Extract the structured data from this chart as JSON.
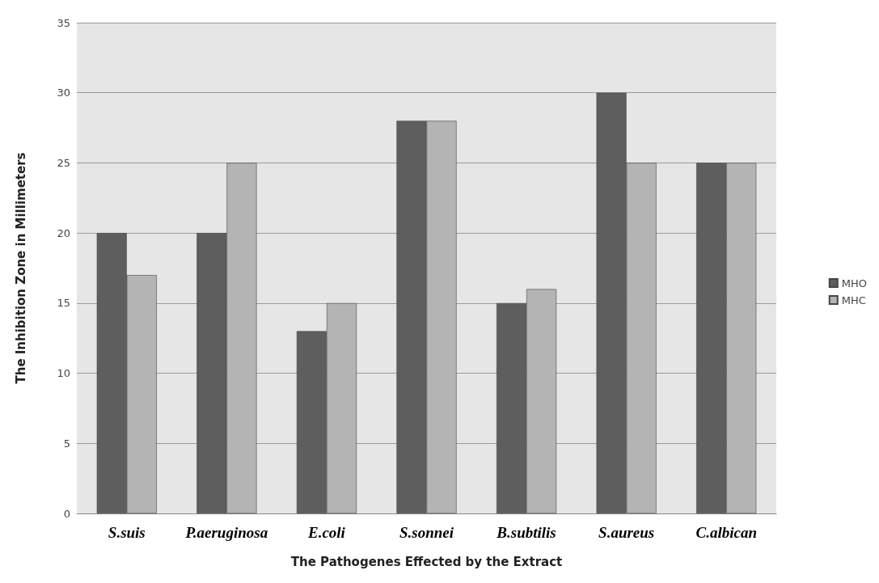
{
  "chart_data": {
    "type": "bar",
    "xlabel": "The Pathogenes Effected by the Extract",
    "ylabel": "The Inhibition Zone in Millimeters",
    "categories": [
      "S.suis",
      "P.aeruginosa",
      "E.coli",
      "S.sonnei",
      "B.subtilis",
      "S.aureus",
      "C.albican"
    ],
    "series": [
      {
        "name": "MHO",
        "color": "#5e5e5e",
        "values": [
          20,
          20,
          13,
          28,
          15,
          30,
          25
        ]
      },
      {
        "name": "MHC",
        "color": "#b4b4b4",
        "values": [
          17,
          25,
          15,
          28,
          16,
          25,
          25
        ]
      }
    ],
    "ylim": [
      0,
      35
    ],
    "yticks": [
      0,
      5,
      10,
      15,
      20,
      25,
      30,
      35
    ],
    "grid": "y",
    "legend": "right"
  }
}
